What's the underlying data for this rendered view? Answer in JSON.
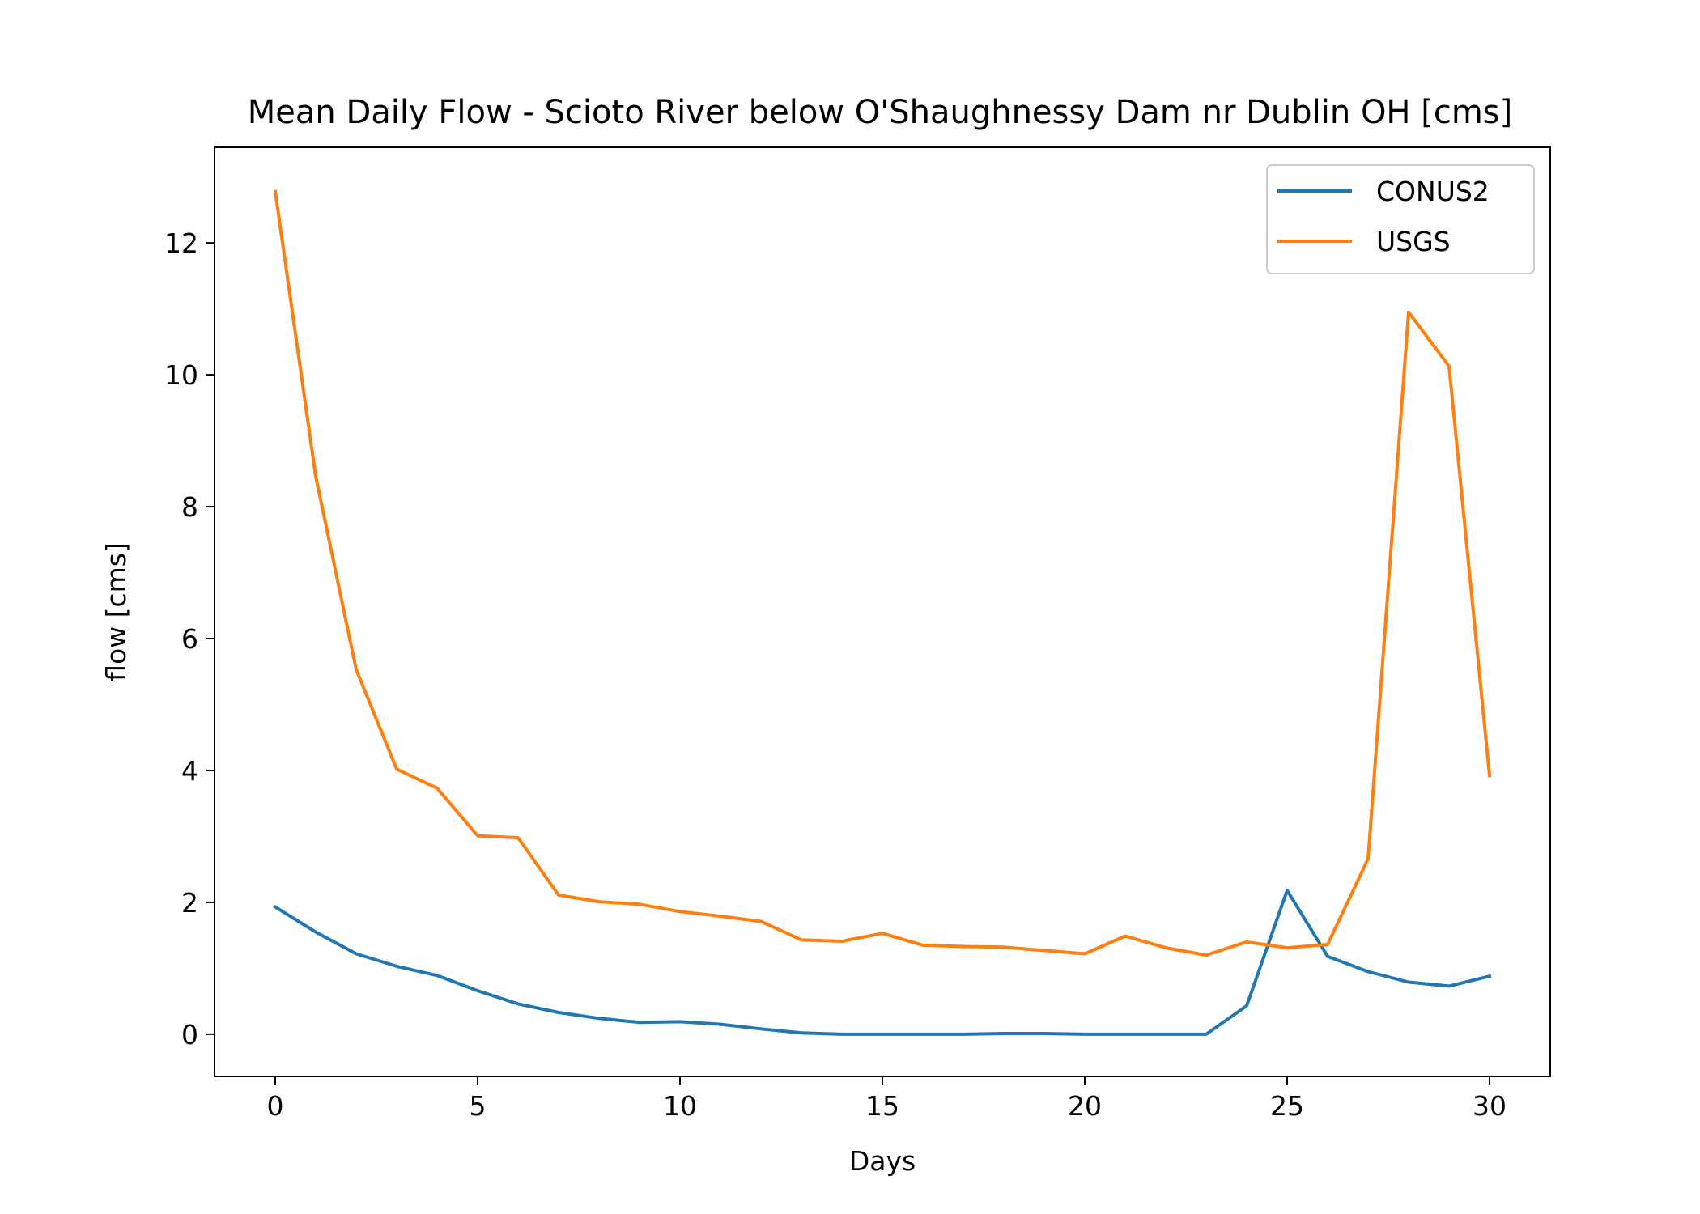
{
  "chart_data": {
    "type": "line",
    "title": "Mean Daily Flow - Scioto River below O'Shaughnessy Dam nr Dublin OH [cms]",
    "xlabel": "Days",
    "ylabel": "flow [cms]",
    "xlim": [
      -1.5,
      31.5
    ],
    "ylim": [
      -0.64,
      13.45
    ],
    "xticks": [
      0,
      5,
      10,
      15,
      20,
      25,
      30
    ],
    "yticks": [
      0,
      2,
      4,
      6,
      8,
      10,
      12
    ],
    "grid": false,
    "legend_position": "top-right",
    "x": [
      0,
      1,
      2,
      3,
      4,
      5,
      6,
      7,
      8,
      9,
      10,
      11,
      12,
      13,
      14,
      15,
      16,
      17,
      18,
      19,
      20,
      21,
      22,
      23,
      24,
      25,
      26,
      27,
      28,
      29,
      30
    ],
    "series": [
      {
        "name": "CONUS2",
        "color": "#1f77b4",
        "values": [
          1.93,
          1.55,
          1.22,
          1.03,
          0.89,
          0.66,
          0.46,
          0.33,
          0.24,
          0.18,
          0.19,
          0.15,
          0.08,
          0.02,
          0.0,
          0.0,
          0.0,
          0.0,
          0.01,
          0.01,
          0.0,
          0.0,
          0.0,
          0.0,
          0.43,
          2.18,
          1.18,
          0.95,
          0.79,
          0.73,
          0.88
        ]
      },
      {
        "name": "USGS",
        "color": "#ff7f0e",
        "values": [
          12.78,
          8.46,
          5.53,
          4.02,
          3.73,
          3.01,
          2.98,
          2.11,
          2.01,
          1.97,
          1.86,
          1.79,
          1.71,
          1.43,
          1.41,
          1.53,
          1.35,
          1.33,
          1.32,
          1.27,
          1.22,
          1.49,
          1.31,
          1.2,
          1.4,
          1.31,
          1.36,
          2.66,
          10.95,
          10.13,
          3.92
        ]
      }
    ]
  }
}
